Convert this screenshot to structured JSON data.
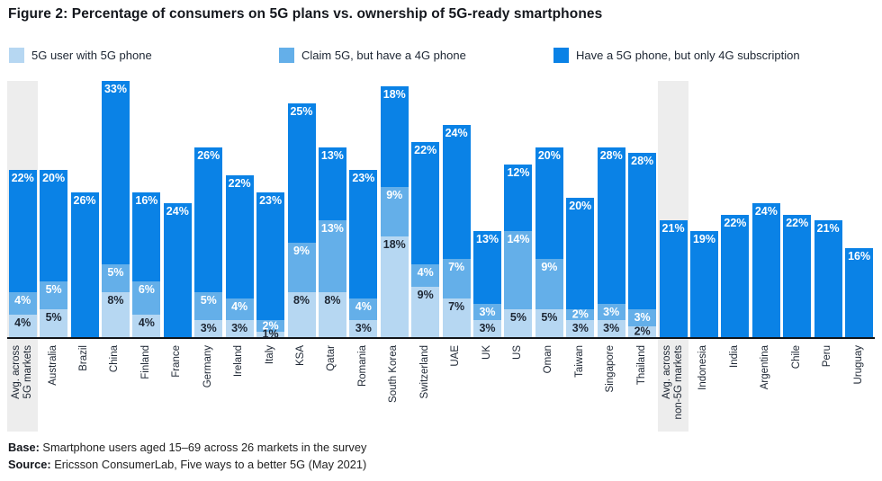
{
  "title": "Figure 2: Percentage of consumers on 5G plans vs. ownership of 5G-ready smartphones",
  "legend": [
    {
      "label": "5G user with 5G phone",
      "color": "#b6d7f2"
    },
    {
      "label": "Claim 5G, but have a 4G phone",
      "color": "#64afe9"
    },
    {
      "label": "Have a 5G phone, but only 4G subscription",
      "color": "#0a82e6"
    }
  ],
  "footer": {
    "base_label": "Base:",
    "base_text": " Smartphone users aged 15–69 across 26 markets in the survey",
    "source_label": "Source:",
    "source_text": " Ericsson ConsumerLab, Five ways to a better 5G (May 2021)"
  },
  "chart_data": {
    "type": "bar",
    "stacked": true,
    "unit": "%",
    "ylim": [
      0,
      46
    ],
    "grid": false,
    "legend_position": "top",
    "value_labels": "on_segments",
    "categories": [
      "Avg. across\n5G markets",
      "Australia",
      "Brazil",
      "China",
      "Finland",
      "France",
      "Germany",
      "Ireland",
      "Italy",
      "KSA",
      "Qatar",
      "Romania",
      "South Korea",
      "Switzerland",
      "UAE",
      "UK",
      "US",
      "Oman",
      "Taiwan",
      "Singapore",
      "Thailand",
      "Avg. across\nnon-5G markets",
      "Indonesia",
      "India",
      "Argentina",
      "Chile",
      "Peru",
      "Uruguay"
    ],
    "highlight_indices": [
      0,
      21
    ],
    "highlight_band_color": "#ededed",
    "axis_line_color": "#111418",
    "series": [
      {
        "name": "5G user with 5G phone",
        "color": "#b6d7f2",
        "label_color": "#1d2633",
        "values": [
          4,
          5,
          null,
          8,
          4,
          null,
          3,
          3,
          1,
          8,
          8,
          3,
          18,
          9,
          7,
          3,
          5,
          5,
          3,
          3,
          2,
          null,
          null,
          null,
          null,
          null,
          null,
          null
        ]
      },
      {
        "name": "Claim 5G, but have a 4G phone",
        "color": "#64afe9",
        "label_color": "#ffffff",
        "values": [
          4,
          5,
          null,
          5,
          6,
          null,
          5,
          4,
          2,
          9,
          13,
          4,
          9,
          4,
          7,
          3,
          14,
          9,
          2,
          3,
          3,
          null,
          null,
          null,
          null,
          null,
          null,
          null
        ]
      },
      {
        "name": "Have a 5G phone, but only 4G subscription",
        "color": "#0a82e6",
        "label_color": "#ffffff",
        "values": [
          22,
          20,
          26,
          33,
          16,
          24,
          26,
          22,
          23,
          25,
          13,
          23,
          18,
          22,
          24,
          13,
          12,
          20,
          20,
          28,
          28,
          21,
          19,
          22,
          24,
          22,
          21,
          16
        ]
      }
    ]
  }
}
